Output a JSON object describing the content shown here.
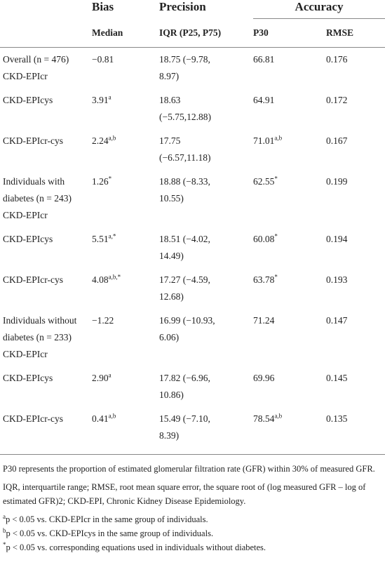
{
  "table": {
    "header": {
      "groups": [
        "Bias",
        "Precision",
        "Accuracy"
      ],
      "columns": [
        "Median",
        "IQR (P25, P75)",
        "P30",
        "RMSE"
      ]
    },
    "rows": [
      {
        "label": [
          "Overall (n = 476)",
          "CKD-EPIcr"
        ],
        "median": "−0.81",
        "iqr": [
          "18.75 (−9.78,",
          "8.97)"
        ],
        "p30": "66.81",
        "rmse": "0.176"
      },
      {
        "label": [
          "CKD-EPIcys"
        ],
        "median": "3.91",
        "median_sup": "a",
        "iqr": [
          "18.63",
          "(−5.75,12.88)"
        ],
        "p30": "64.91",
        "rmse": "0.172"
      },
      {
        "label": [
          "CKD-EPIcr-cys"
        ],
        "median": "2.24",
        "median_sup": "a,b",
        "iqr": [
          "17.75",
          "(−6.57,11.18)"
        ],
        "p30": "71.01",
        "p30_sup": "a,b",
        "rmse": "0.167"
      },
      {
        "label": [
          "Individuals with",
          "diabetes (n = 243)",
          "CKD-EPIcr"
        ],
        "median": "1.26",
        "median_sup": "*",
        "iqr": [
          "18.88 (−8.33,",
          "10.55)"
        ],
        "p30": "62.55",
        "p30_sup": "*",
        "rmse": "0.199"
      },
      {
        "label": [
          "CKD-EPIcys"
        ],
        "median": "5.51",
        "median_sup": "a,*",
        "iqr": [
          "18.51 (−4.02,",
          "14.49)"
        ],
        "p30": "60.08",
        "p30_sup": "*",
        "rmse": "0.194"
      },
      {
        "label": [
          "CKD-EPIcr-cys"
        ],
        "median": "4.08",
        "median_sup": "a,b,*",
        "iqr": [
          "17.27 (−4.59,",
          "12.68)"
        ],
        "p30": "63.78",
        "p30_sup": "*",
        "rmse": "0.193"
      },
      {
        "label": [
          "Individuals without",
          "diabetes (n = 233)",
          "CKD-EPIcr"
        ],
        "median": "−1.22",
        "iqr": [
          "16.99 (−10.93,",
          "6.06)"
        ],
        "p30": "71.24",
        "rmse": "0.147"
      },
      {
        "label": [
          "CKD-EPIcys"
        ],
        "median": "2.90",
        "median_sup": "a",
        "iqr": [
          "17.82 (−6.96,",
          "10.86)"
        ],
        "p30": "69.96",
        "rmse": "0.145"
      },
      {
        "label": [
          "CKD-EPIcr-cys"
        ],
        "median": "0.41",
        "median_sup": "a,b",
        "iqr": [
          "15.49 (−7.10,",
          "8.39)"
        ],
        "p30": "78.54",
        "p30_sup": "a,b",
        "rmse": "0.135"
      }
    ]
  },
  "footnotes": [
    {
      "text": "P30 represents the proportion of estimated glomerular filtration rate (GFR) within 30% of measured GFR."
    },
    {
      "text": "IQR, interquartile range; RMSE, root mean square error, the square root of (log measured GFR – log of estimated GFR)2; CKD-EPI, Chronic Kidney Disease Epidemiology."
    },
    {
      "mark": "a",
      "text": "p < 0.05 vs. CKD-EPIcr in the same group of individuals."
    },
    {
      "mark": "b",
      "text": "p < 0.05 vs. CKD-EPIcys in the same group of individuals."
    },
    {
      "mark": "*",
      "text": "p < 0.05 vs. corresponding equations used in individuals without diabetes."
    }
  ]
}
